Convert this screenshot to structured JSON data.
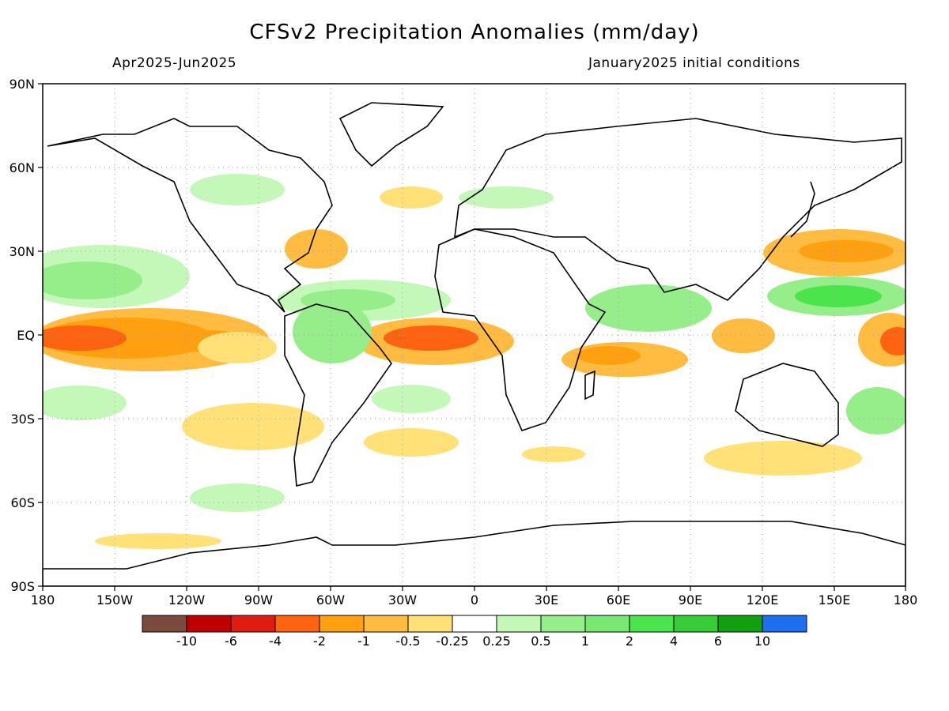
{
  "title": "CFSv2 Precipitation Anomalies (mm/day)",
  "period": "Apr2025-Jun2025",
  "init": "January2025 initial conditions",
  "lat_labels": [
    "90N",
    "60N",
    "30N",
    "EQ",
    "30S",
    "60S",
    "90S"
  ],
  "lon_labels": [
    "180",
    "150W",
    "120W",
    "90W",
    "60W",
    "30W",
    "0",
    "30E",
    "60E",
    "90E",
    "120E",
    "150E",
    "180"
  ],
  "colorbar": {
    "colors": [
      "#7a4b3c",
      "#c00000",
      "#e01b10",
      "#ff6310",
      "#ffa010",
      "#ffbc40",
      "#ffe178",
      "#ffffff",
      "#c4f8b8",
      "#96ee8a",
      "#78e872",
      "#4ce44c",
      "#38cc38",
      "#10a010",
      "#1e6ef0"
    ],
    "labels": [
      "-10",
      "-6",
      "-4",
      "-2",
      "-1",
      "-0.5",
      "-0.25",
      "0.25",
      "0.5",
      "1",
      "2",
      "4",
      "6",
      "10"
    ]
  },
  "colors": {
    "dry_light": "#ffe178",
    "dry_mid": "#ffbc40",
    "dry_strong": "#ffa010",
    "dry_extreme": "#ff6310",
    "wet_light": "#c4f8b8",
    "wet_mid": "#96ee8a",
    "wet_strong": "#78e872",
    "wet_extreme": "#4ce44c"
  }
}
